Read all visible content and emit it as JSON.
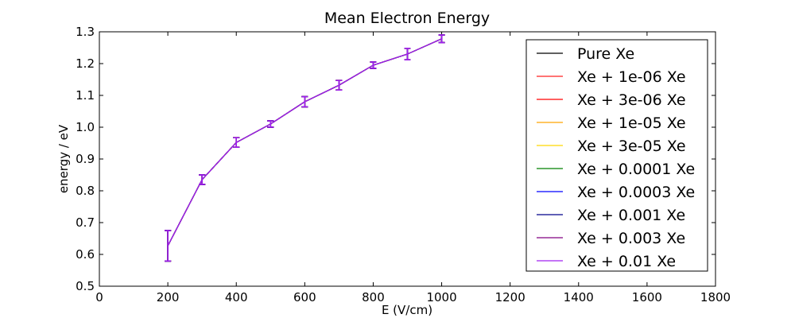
{
  "chart_data": {
    "type": "line",
    "title": "Mean Electron Energy",
    "xlabel": "E (V/cm)",
    "ylabel": "energy / eV",
    "xlim": [
      0,
      1800
    ],
    "ylim": [
      0.5,
      1.3
    ],
    "xticks": [
      0,
      200,
      400,
      600,
      800,
      1000,
      1200,
      1400,
      1600,
      1800
    ],
    "yticks": [
      0.5,
      0.6,
      0.7,
      0.8,
      0.9,
      1.0,
      1.1,
      1.2,
      1.3
    ],
    "xtick_labels": [
      "0",
      "200",
      "400",
      "600",
      "800",
      "1000",
      "1200",
      "1400",
      "1600",
      "1800"
    ],
    "ytick_labels": [
      "0.5",
      "0.6",
      "0.7",
      "0.8",
      "0.9",
      "1.0",
      "1.1",
      "1.2",
      "1.3"
    ],
    "grid": false,
    "legend_position": "right",
    "x": [
      200,
      300,
      400,
      500,
      600,
      700,
      800,
      900,
      1000
    ],
    "values": [
      0.627,
      0.835,
      0.952,
      1.01,
      1.08,
      1.132,
      1.195,
      1.23,
      1.278
    ],
    "errors": [
      0.048,
      0.015,
      0.015,
      0.01,
      0.016,
      0.015,
      0.01,
      0.018,
      0.012
    ],
    "series": [
      {
        "name": "Pure Xe",
        "color": "#000000"
      },
      {
        "name": "Xe + 1e-06 Xe",
        "color": "#ff2020"
      },
      {
        "name": "Xe + 3e-06 Xe",
        "color": "#ff0000"
      },
      {
        "name": "Xe + 1e-05 Xe",
        "color": "#ffa500"
      },
      {
        "name": "Xe + 3e-05 Xe",
        "color": "#ffd700"
      },
      {
        "name": "Xe + 0.0001 Xe",
        "color": "#008000"
      },
      {
        "name": "Xe + 0.0003 Xe",
        "color": "#0000ff"
      },
      {
        "name": "Xe + 0.001 Xe",
        "color": "#00008b"
      },
      {
        "name": "Xe + 0.003 Xe",
        "color": "#800080"
      },
      {
        "name": "Xe + 0.01 Xe",
        "color": "#a020f0"
      }
    ]
  }
}
